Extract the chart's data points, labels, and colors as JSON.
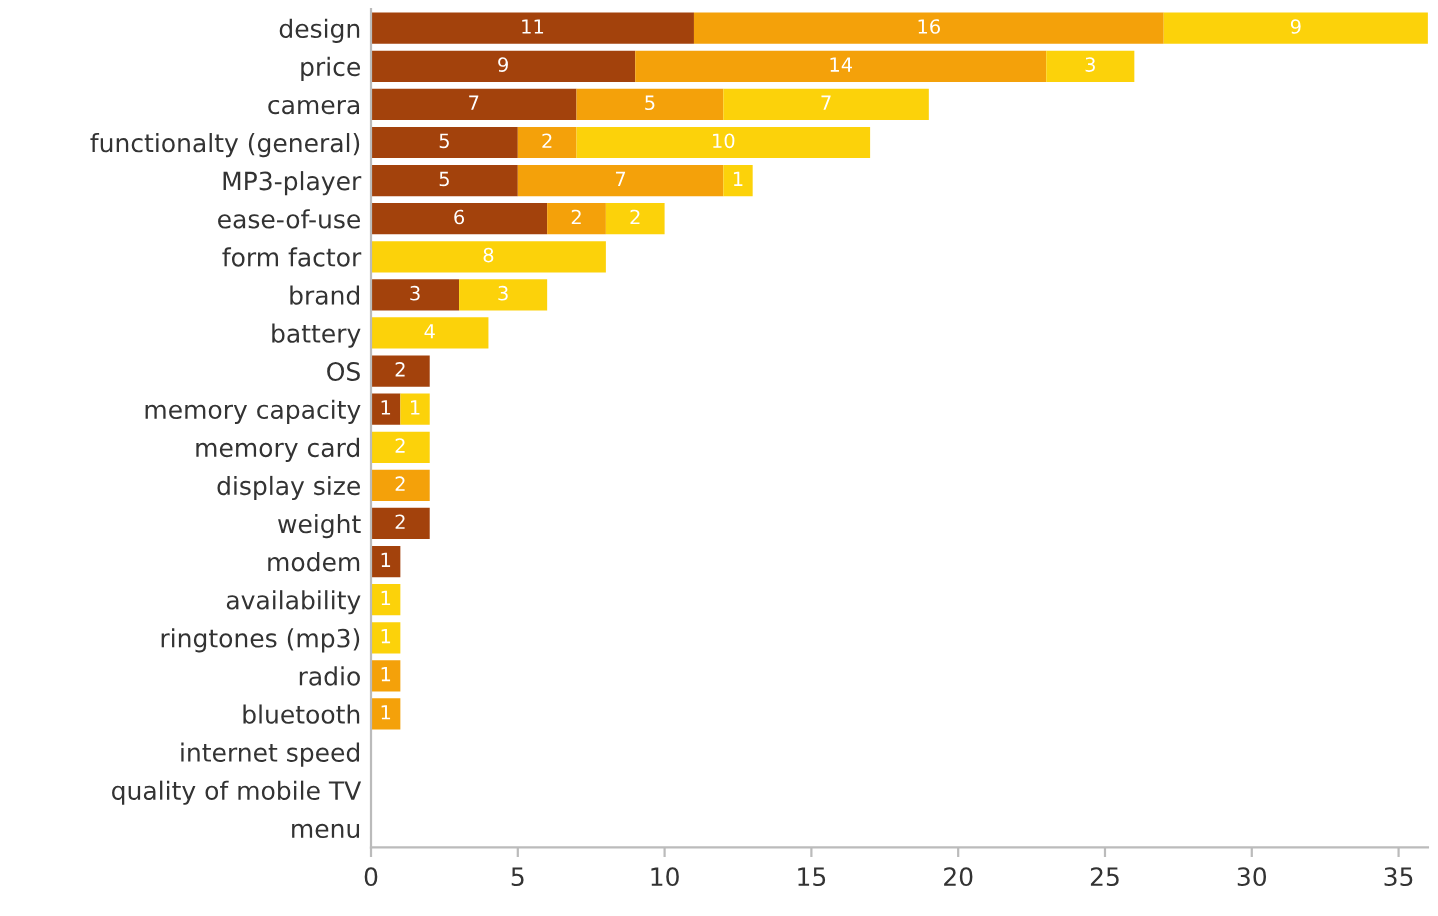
{
  "chart_data": {
    "type": "bar",
    "orientation": "horizontal",
    "stacked": true,
    "data_labels": true,
    "grid": false,
    "categories": [
      "design",
      "price",
      "camera",
      "functionalty (general)",
      "MP3-player",
      "ease-of-use",
      "form factor",
      "brand",
      "battery",
      "OS",
      "memory capacity",
      "memory card",
      "display size",
      "weight",
      "modem",
      "availability",
      "ringtones (mp3)",
      "radio",
      "bluetooth",
      "internet speed",
      "quality of mobile TV",
      "menu"
    ],
    "series": [
      {
        "color": "#a3420c",
        "values": [
          11,
          9,
          7,
          5,
          5,
          6,
          null,
          3,
          null,
          2,
          1,
          null,
          null,
          2,
          1,
          null,
          null,
          null,
          null,
          null,
          null,
          null
        ]
      },
      {
        "color": "#f4a10a",
        "values": [
          16,
          14,
          5,
          2,
          7,
          2,
          null,
          null,
          null,
          null,
          null,
          null,
          2,
          null,
          null,
          null,
          null,
          1,
          1,
          null,
          null,
          null
        ]
      },
      {
        "color": "#fcd20a",
        "values": [
          9,
          3,
          7,
          10,
          1,
          2,
          8,
          3,
          4,
          null,
          1,
          2,
          null,
          null,
          null,
          1,
          1,
          null,
          null,
          null,
          null,
          null
        ]
      }
    ],
    "xlim": [
      0,
      36
    ],
    "xticks": [
      0,
      5,
      10,
      15,
      20,
      25,
      30,
      35
    ]
  }
}
